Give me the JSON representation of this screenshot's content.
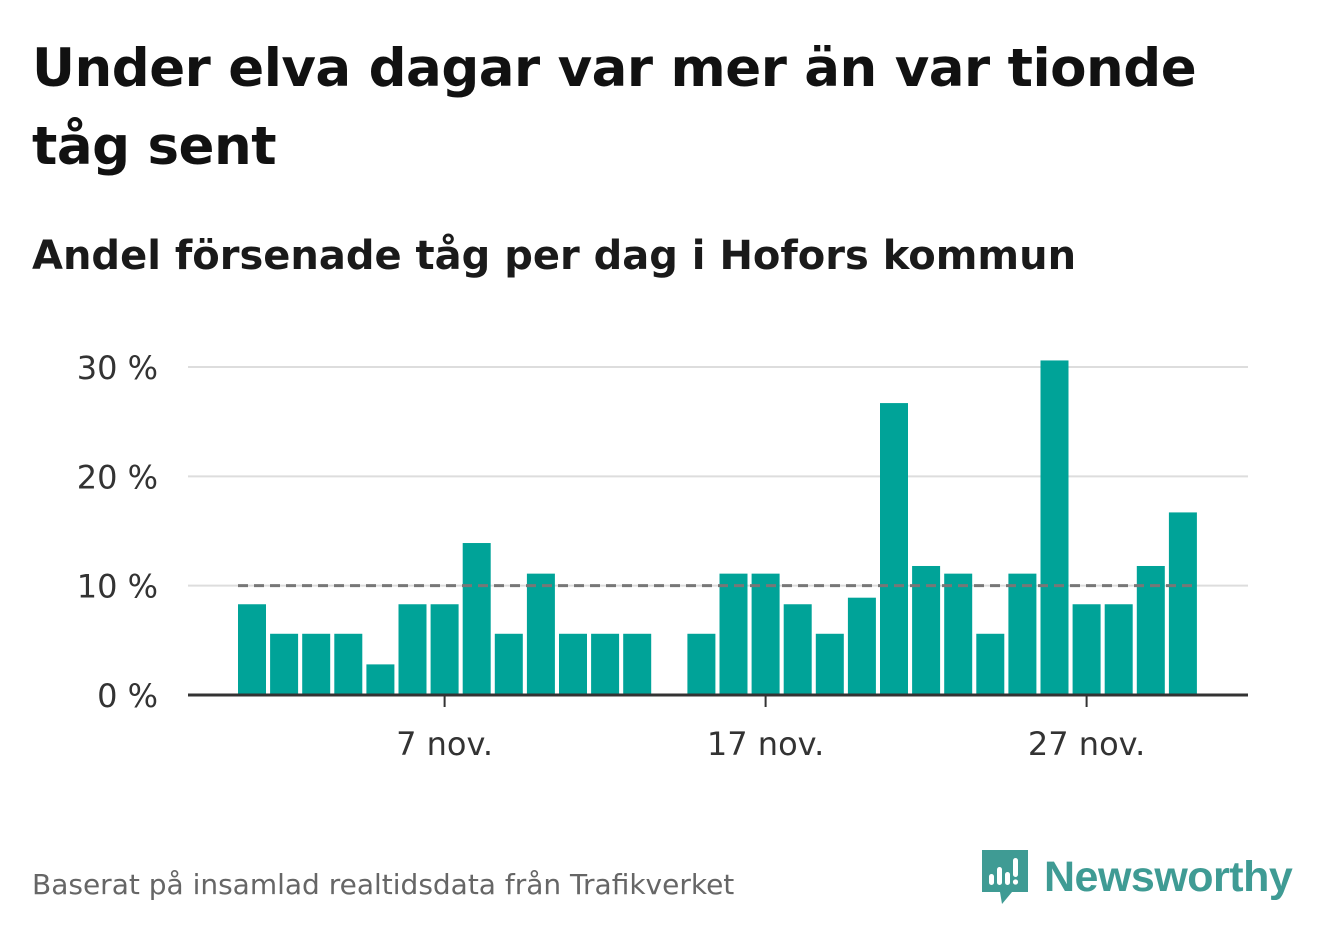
{
  "title": "Under elva dagar var mer än var tionde tåg sent",
  "subtitle": "Andel försenade tåg per dag i Hofors kommun",
  "footer": "Baserat på insamlad realtidsdata från Trafikverket",
  "brand": {
    "name": "Newsworthy",
    "color": "#3f9b94"
  },
  "chart_data": {
    "type": "bar",
    "x": [
      "1 nov.",
      "2 nov.",
      "3 nov.",
      "4 nov.",
      "5 nov.",
      "6 nov.",
      "7 nov.",
      "8 nov.",
      "9 nov.",
      "10 nov.",
      "11 nov.",
      "12 nov.",
      "13 nov.",
      "14 nov.",
      "15 nov.",
      "16 nov.",
      "17 nov.",
      "18 nov.",
      "19 nov.",
      "20 nov.",
      "21 nov.",
      "22 nov.",
      "23 nov.",
      "24 nov.",
      "25 nov.",
      "26 nov.",
      "27 nov.",
      "28 nov.",
      "29 nov.",
      "30 nov."
    ],
    "values": [
      8.3,
      5.6,
      5.6,
      5.6,
      2.8,
      8.3,
      8.3,
      13.9,
      5.6,
      11.1,
      5.6,
      5.6,
      5.6,
      null,
      5.6,
      11.1,
      11.1,
      8.3,
      5.6,
      8.9,
      26.7,
      11.8,
      11.1,
      5.6,
      11.1,
      30.6,
      8.3,
      8.3,
      11.8,
      16.7
    ],
    "ylim": [
      0,
      30
    ],
    "yticks": [
      0,
      10,
      20,
      30
    ],
    "ytick_labels": [
      "0 %",
      "10 %",
      "20 %",
      "30 %"
    ],
    "xticks": [
      "7 nov.",
      "17 nov.",
      "27 nov."
    ],
    "reference_line": 10,
    "bar_color": "#00a398",
    "reference_color": "#777777",
    "grid": true
  }
}
